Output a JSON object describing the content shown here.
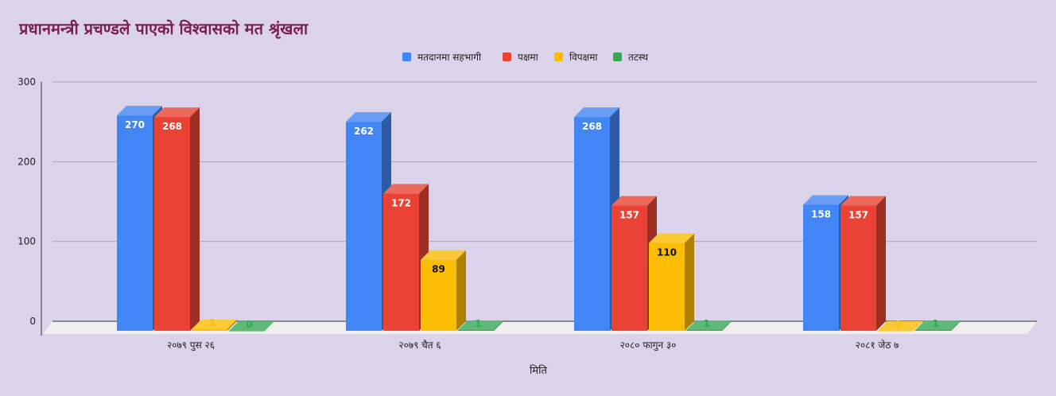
{
  "chart_data": {
    "type": "bar",
    "title": "प्रधानमन्त्री प्रचण्डले पाएको विश्वासको मत श्रृंखला",
    "xlabel": "मिति",
    "ylabel": "",
    "ylim": [
      0,
      300
    ],
    "yticks": [
      "0",
      "100",
      "200",
      "300"
    ],
    "categories": [
      "२०७९ पुस २६",
      "२०७९ चैत ६",
      "२०८० फागुन ३०",
      "२०८१ जेठ ७"
    ],
    "series": [
      {
        "name": "मतदानमा सहभागी",
        "color": "#4285f4",
        "values": [
          270,
          262,
          268,
          158
        ]
      },
      {
        "name": "पक्षमा",
        "color": "#ea4335",
        "values": [
          268,
          172,
          157,
          157
        ]
      },
      {
        "name": "विपक्षमा",
        "color": "#fbbc04",
        "values": [
          2,
          89,
          110,
          0
        ]
      },
      {
        "name": "तटस्थ",
        "color": "#34a853",
        "values": [
          0,
          1,
          1,
          1
        ]
      }
    ],
    "legend_position": "top-center",
    "grid": true,
    "three_d": true
  }
}
